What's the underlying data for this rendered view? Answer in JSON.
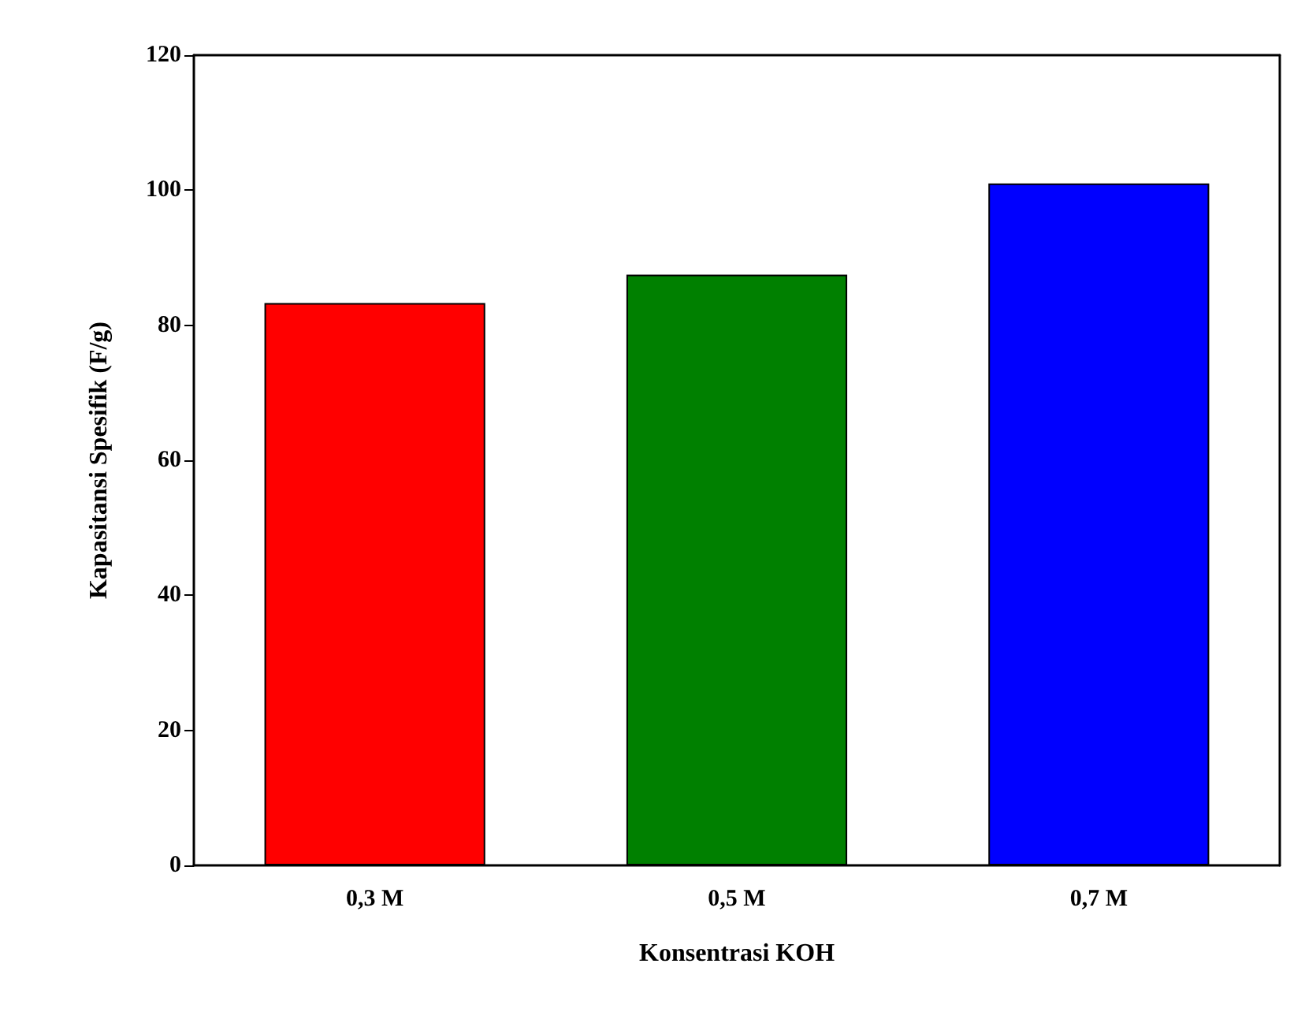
{
  "chart_data": {
    "type": "bar",
    "xlabel": "Konsentrasi KOH",
    "ylabel": "Kapasitansi Spesifik (F/g)",
    "categories": [
      "0,3 M",
      "0,5 M",
      "0,7 M"
    ],
    "values": [
      83.3,
      87.5,
      101
    ],
    "colors": [
      "#ff0000",
      "#008000",
      "#0000ff"
    ],
    "ylim": [
      0,
      120
    ],
    "yticks": [
      0,
      20,
      40,
      60,
      80,
      100,
      120
    ],
    "grid": false
  }
}
